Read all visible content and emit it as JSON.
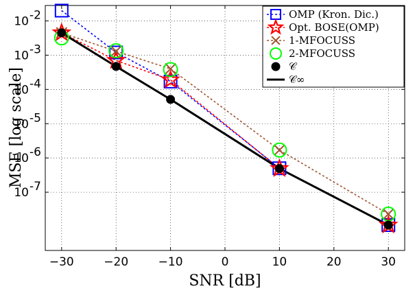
{
  "chart_data": {
    "type": "line",
    "title": "",
    "xlabel": "SNR [dB]",
    "ylabel": "MSE [log scale]",
    "xlim": [
      -33,
      33
    ],
    "ylim_log10": [
      -8.7,
      -1.55
    ],
    "yscale": "log",
    "xticks": [
      -30,
      -20,
      -10,
      0,
      10,
      20,
      30
    ],
    "xtick_labels": [
      "−30",
      "−20",
      "−10",
      "0",
      "10",
      "20",
      "30"
    ],
    "yticks": [
      {
        "exp": -2,
        "label": "10",
        "sup": "-2"
      },
      {
        "exp": -3,
        "label": "10",
        "sup": "-3"
      },
      {
        "exp": -4,
        "label": "10",
        "sup": "-4"
      },
      {
        "exp": -5,
        "label": "10",
        "sup": "-5"
      },
      {
        "exp": -6,
        "label": "10",
        "sup": "-6"
      },
      {
        "exp": -7,
        "label": "10",
        "sup": "-7"
      }
    ],
    "grid": true,
    "legend_position": "top-right",
    "x": [
      -30,
      -20,
      -10,
      10,
      30
    ],
    "series": [
      {
        "name": "OMP (Kron. Dic.)",
        "color": "#0000ff",
        "dash": "3,3",
        "marker": "square",
        "values": [
          0.02,
          0.0012,
          0.00017,
          5e-07,
          1.1e-08
        ]
      },
      {
        "name": "Opt. BOSE(OMP)",
        "color": "#ff0000",
        "dash": "3,3",
        "marker": "star",
        "values": [
          0.0045,
          0.0007,
          0.00019,
          4.9e-07,
          1.1e-08
        ]
      },
      {
        "name": "1-MFOCUSS",
        "color": "#a0522d",
        "dash": "3,3",
        "marker": "x",
        "values": [
          0.0045,
          0.0013,
          0.0004,
          1.7e-06,
          2.3e-08
        ]
      },
      {
        "name": "2-MFOCUSS",
        "color": "#00ff00",
        "dash": "none",
        "marker": "circle-open",
        "values": [
          0.0032,
          0.00135,
          0.00038,
          1.7e-06,
          2.3e-08
        ]
      },
      {
        "name": "𝒞",
        "color": "#000000",
        "dash": "none",
        "marker": "dot",
        "values": [
          0.0045,
          0.00047,
          5.1e-05,
          4.9e-07,
          1.1e-08
        ]
      },
      {
        "name": "𝒞∞",
        "color": "#000000",
        "dash": "solid",
        "marker": "none",
        "values": [
          0.0045,
          0.00047,
          5.1e-05,
          4.9e-07,
          1.1e-08
        ]
      }
    ]
  }
}
